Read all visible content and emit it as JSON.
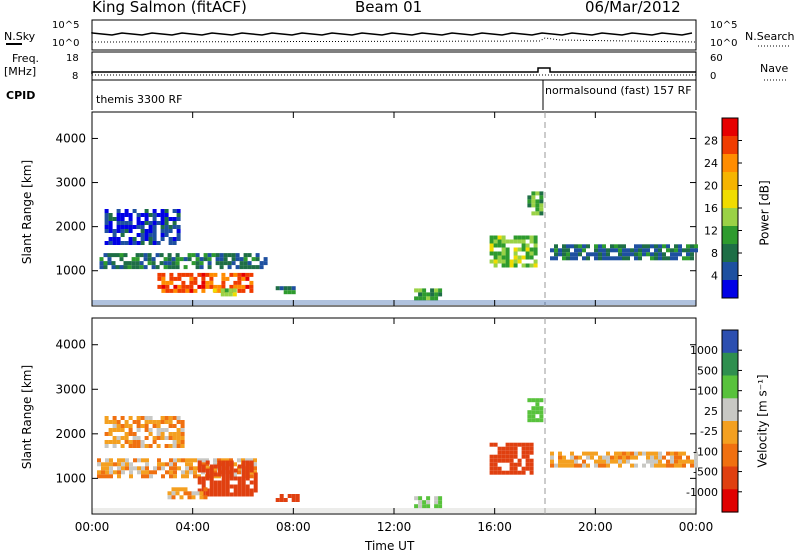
{
  "header": {
    "station": "King Salmon (fitACF)",
    "beam": "Beam 01",
    "date": "06/Mar/2012"
  },
  "top_panels": {
    "nsky_label": "N.Sky",
    "nsky_ticks": [
      "10^5",
      "10^0"
    ],
    "nsearch_label": "N.Search",
    "nsearch_ticks": [
      "10^5",
      "10^0"
    ],
    "freq_label_1": "Freq.",
    "freq_label_2": "[MHz]",
    "freq_ticks": [
      "18",
      "8"
    ],
    "nave_label": "Nave",
    "nave_ticks": [
      "60",
      "0"
    ],
    "cpid_label": "CPID",
    "cpid_segments": [
      {
        "label": "themis 3300 RF",
        "start_hour": 0
      },
      {
        "label": "normalsound (fast) 157 RF",
        "start_hour": 18
      }
    ]
  },
  "axes": {
    "ylabel": "Slant Range [km]",
    "xlabel": "Time UT",
    "x_ticks": [
      "00:00",
      "04:00",
      "08:00",
      "12:00",
      "16:00",
      "20:00",
      "00:00"
    ],
    "y_ticks": [
      "1000",
      "2000",
      "3000",
      "4000"
    ]
  },
  "colorbars": {
    "power": {
      "label": "Power [dB]",
      "ticks": [
        "28",
        "24",
        "20",
        "16",
        "12",
        "8",
        "4"
      ],
      "colors": [
        "#e60000",
        "#f03c00",
        "#ff8c00",
        "#f5b400",
        "#f0dc00",
        "#9ad246",
        "#2e9b2e",
        "#1e6e46",
        "#1e50a0",
        "#0000e6"
      ]
    },
    "velocity": {
      "label": "Velocity [m s⁻¹]",
      "ticks": [
        "1000",
        "500",
        "100",
        "25",
        "-25",
        "-100",
        "-500",
        "-1000"
      ],
      "colors": [
        "#2c4fb0",
        "#2f8f4f",
        "#58c23c",
        "#c8c8c4",
        "#f4a020",
        "#f07010",
        "#e04010",
        "#e00000"
      ]
    }
  },
  "chart_data": [
    {
      "type": "heatmap",
      "panel": "power",
      "xlabel": "Time UT",
      "ylabel": "Slant Range [km]",
      "xlim_hours": [
        0,
        24
      ],
      "ylim_km": [
        200,
        4600
      ],
      "colorbar_label": "Power [dB]",
      "regions": [
        {
          "t0": 0.3,
          "t1": 6.9,
          "r0": 1050,
          "r1": 1400,
          "value": 8
        },
        {
          "t0": 0.5,
          "t1": 3.5,
          "r0": 1600,
          "r1": 2400,
          "value": 5
        },
        {
          "t0": 2.6,
          "t1": 6.4,
          "r0": 550,
          "r1": 950,
          "value": 26
        },
        {
          "t0": 4.8,
          "t1": 5.6,
          "r0": 450,
          "r1": 600,
          "value": 14
        },
        {
          "t0": 7.3,
          "t1": 8.1,
          "r0": 500,
          "r1": 650,
          "value": 10
        },
        {
          "t0": 12.8,
          "t1": 13.9,
          "r0": 400,
          "r1": 600,
          "value": 12
        },
        {
          "t0": 15.8,
          "t1": 17.6,
          "r0": 1100,
          "r1": 1800,
          "value": 14
        },
        {
          "t0": 17.3,
          "t1": 17.9,
          "r0": 2300,
          "r1": 2800,
          "value": 12
        },
        {
          "t0": 18.2,
          "t1": 24,
          "r0": 1300,
          "r1": 1600,
          "value": 8
        }
      ]
    },
    {
      "type": "heatmap",
      "panel": "velocity",
      "xlabel": "Time UT",
      "ylabel": "Slant Range [km]",
      "xlim_hours": [
        0,
        24
      ],
      "ylim_km": [
        200,
        4600
      ],
      "colorbar_label": "Velocity [m s⁻¹]",
      "regions": [
        {
          "t0": 0.2,
          "t1": 6.5,
          "r0": 1050,
          "r1": 1450,
          "value": 0
        },
        {
          "t0": 0.5,
          "t1": 3.6,
          "r0": 1700,
          "r1": 2400,
          "value": 0
        },
        {
          "t0": 4.2,
          "t1": 6.5,
          "r0": 600,
          "r1": 1400,
          "value": -150
        },
        {
          "t0": 3.0,
          "t1": 4.5,
          "r0": 600,
          "r1": 800,
          "value": 0
        },
        {
          "t0": 7.3,
          "t1": 8.1,
          "r0": 500,
          "r1": 650,
          "value": -150
        },
        {
          "t0": 12.8,
          "t1": 13.9,
          "r0": 400,
          "r1": 600,
          "value": 100
        },
        {
          "t0": 15.8,
          "t1": 17.5,
          "r0": 1100,
          "r1": 1800,
          "value": -150
        },
        {
          "t0": 17.3,
          "t1": 17.9,
          "r0": 2300,
          "r1": 2800,
          "value": 200
        },
        {
          "t0": 18.2,
          "t1": 24,
          "r0": 1250,
          "r1": 1600,
          "value": 0
        }
      ]
    }
  ]
}
